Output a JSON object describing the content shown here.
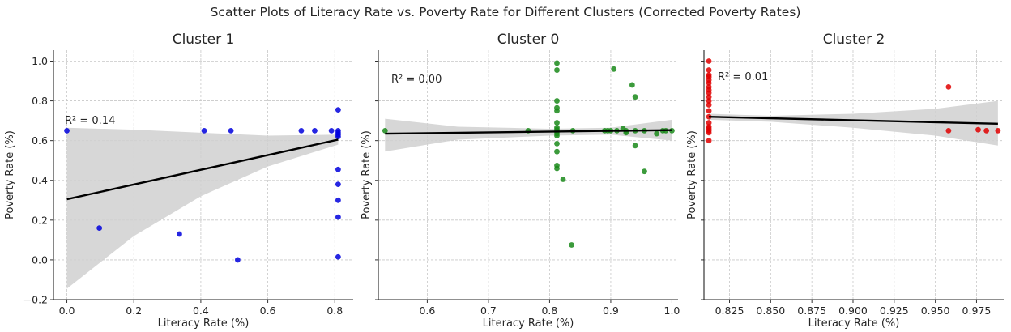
{
  "title": "Scatter Plots of Literacy Rate vs. Poverty Rate for Different Clusters (Corrected Poverty Rates)",
  "chart_data": [
    {
      "type": "scatter",
      "title": "Cluster 1",
      "xlabel": "Literacy Rate (%)",
      "ylabel": "Poverty Rate (%)",
      "xlim": [
        -0.04,
        0.855
      ],
      "ylim": [
        -0.2,
        1.055
      ],
      "xticks": [
        "0.0",
        "0.2",
        "0.4",
        "0.6",
        "0.8"
      ],
      "yticks": [
        "−0.2",
        "0.0",
        "0.2",
        "0.4",
        "0.6",
        "0.8",
        "1.0"
      ],
      "grid": true,
      "color": "#0000dd",
      "annotation": "R² = 0.14",
      "points": [
        {
          "x": 0.0,
          "y": 0.65
        },
        {
          "x": 0.097,
          "y": 0.16
        },
        {
          "x": 0.336,
          "y": 0.13
        },
        {
          "x": 0.41,
          "y": 0.65
        },
        {
          "x": 0.49,
          "y": 0.65
        },
        {
          "x": 0.51,
          "y": 0.0
        },
        {
          "x": 0.7,
          "y": 0.65
        },
        {
          "x": 0.74,
          "y": 0.65
        },
        {
          "x": 0.79,
          "y": 0.65
        },
        {
          "x": 0.81,
          "y": 0.755
        },
        {
          "x": 0.81,
          "y": 0.65
        },
        {
          "x": 0.81,
          "y": 0.64
        },
        {
          "x": 0.81,
          "y": 0.63
        },
        {
          "x": 0.81,
          "y": 0.62
        },
        {
          "x": 0.81,
          "y": 0.455
        },
        {
          "x": 0.81,
          "y": 0.38
        },
        {
          "x": 0.81,
          "y": 0.3
        },
        {
          "x": 0.81,
          "y": 0.215
        },
        {
          "x": 0.81,
          "y": 0.015
        }
      ],
      "regression": {
        "x": [
          0.0,
          0.81
        ],
        "y": [
          0.305,
          0.605
        ]
      },
      "band_upper": {
        "x": [
          0.0,
          0.2,
          0.4,
          0.6,
          0.81
        ],
        "y": [
          0.665,
          0.655,
          0.64,
          0.625,
          0.63
        ]
      },
      "band_lower": {
        "x": [
          0.0,
          0.2,
          0.4,
          0.6,
          0.81
        ],
        "y": [
          -0.145,
          0.12,
          0.32,
          0.47,
          0.58
        ]
      }
    },
    {
      "type": "scatter",
      "title": "Cluster 0",
      "xlabel": "Literacy Rate (%)",
      "ylabel": "Poverty Rate (%)",
      "xlim": [
        0.52,
        1.01
      ],
      "ylim": [
        -0.2,
        1.055
      ],
      "xticks": [
        "0.6",
        "0.7",
        "0.8",
        "0.9",
        "1.0"
      ],
      "yticks": [],
      "grid": true,
      "color": "#1a8a1a",
      "annotation": "R² = 0.00",
      "points": [
        {
          "x": 0.531,
          "y": 0.65
        },
        {
          "x": 0.765,
          "y": 0.65
        },
        {
          "x": 0.812,
          "y": 0.99
        },
        {
          "x": 0.812,
          "y": 0.955
        },
        {
          "x": 0.812,
          "y": 0.8
        },
        {
          "x": 0.812,
          "y": 0.765
        },
        {
          "x": 0.812,
          "y": 0.75
        },
        {
          "x": 0.812,
          "y": 0.69
        },
        {
          "x": 0.812,
          "y": 0.665
        },
        {
          "x": 0.812,
          "y": 0.655
        },
        {
          "x": 0.812,
          "y": 0.645
        },
        {
          "x": 0.812,
          "y": 0.635
        },
        {
          "x": 0.812,
          "y": 0.625
        },
        {
          "x": 0.812,
          "y": 0.585
        },
        {
          "x": 0.812,
          "y": 0.545
        },
        {
          "x": 0.812,
          "y": 0.475
        },
        {
          "x": 0.812,
          "y": 0.46
        },
        {
          "x": 0.822,
          "y": 0.405
        },
        {
          "x": 0.836,
          "y": 0.075
        },
        {
          "x": 0.838,
          "y": 0.65
        },
        {
          "x": 0.89,
          "y": 0.65
        },
        {
          "x": 0.895,
          "y": 0.65
        },
        {
          "x": 0.9,
          "y": 0.65
        },
        {
          "x": 0.905,
          "y": 0.96
        },
        {
          "x": 0.91,
          "y": 0.65
        },
        {
          "x": 0.92,
          "y": 0.66
        },
        {
          "x": 0.925,
          "y": 0.64
        },
        {
          "x": 0.925,
          "y": 0.65
        },
        {
          "x": 0.935,
          "y": 0.88
        },
        {
          "x": 0.94,
          "y": 0.82
        },
        {
          "x": 0.94,
          "y": 0.575
        },
        {
          "x": 0.94,
          "y": 0.65
        },
        {
          "x": 0.955,
          "y": 0.65
        },
        {
          "x": 0.955,
          "y": 0.445
        },
        {
          "x": 0.975,
          "y": 0.635
        },
        {
          "x": 0.985,
          "y": 0.65
        },
        {
          "x": 0.99,
          "y": 0.65
        },
        {
          "x": 1.0,
          "y": 0.65
        }
      ],
      "regression": {
        "x": [
          0.531,
          1.0
        ],
        "y": [
          0.635,
          0.653
        ]
      },
      "band_upper": {
        "x": [
          0.531,
          0.65,
          0.8,
          0.9,
          1.0
        ],
        "y": [
          0.71,
          0.67,
          0.66,
          0.665,
          0.705
        ]
      },
      "band_lower": {
        "x": [
          0.531,
          0.65,
          0.8,
          0.9,
          1.0
        ],
        "y": [
          0.545,
          0.605,
          0.625,
          0.63,
          0.6
        ]
      }
    },
    {
      "type": "scatter",
      "title": "Cluster 2",
      "xlabel": "Literacy Rate (%)",
      "ylabel": "Poverty Rate (%)",
      "xlim": [
        0.8095,
        0.9915
      ],
      "ylim": [
        -0.2,
        1.055
      ],
      "xticks": [
        "0.825",
        "0.850",
        "0.875",
        "0.900",
        "0.925",
        "0.950",
        "0.975"
      ],
      "yticks": [],
      "grid": true,
      "color": "#e00000",
      "annotation": "R² = 0.01",
      "points": [
        {
          "x": 0.8125,
          "y": 1.0
        },
        {
          "x": 0.8125,
          "y": 0.955
        },
        {
          "x": 0.8125,
          "y": 0.93
        },
        {
          "x": 0.8125,
          "y": 0.92
        },
        {
          "x": 0.8125,
          "y": 0.905
        },
        {
          "x": 0.8125,
          "y": 0.89
        },
        {
          "x": 0.8125,
          "y": 0.87
        },
        {
          "x": 0.8125,
          "y": 0.855
        },
        {
          "x": 0.8125,
          "y": 0.84
        },
        {
          "x": 0.8125,
          "y": 0.82
        },
        {
          "x": 0.8125,
          "y": 0.8
        },
        {
          "x": 0.8125,
          "y": 0.78
        },
        {
          "x": 0.8125,
          "y": 0.75
        },
        {
          "x": 0.8125,
          "y": 0.72
        },
        {
          "x": 0.8125,
          "y": 0.69
        },
        {
          "x": 0.8125,
          "y": 0.67
        },
        {
          "x": 0.8125,
          "y": 0.66
        },
        {
          "x": 0.8125,
          "y": 0.65
        },
        {
          "x": 0.8125,
          "y": 0.64
        },
        {
          "x": 0.8125,
          "y": 0.6
        },
        {
          "x": 0.958,
          "y": 0.87
        },
        {
          "x": 0.958,
          "y": 0.65
        },
        {
          "x": 0.976,
          "y": 0.655
        },
        {
          "x": 0.981,
          "y": 0.65
        },
        {
          "x": 0.988,
          "y": 0.65
        }
      ],
      "regression": {
        "x": [
          0.8125,
          0.988
        ],
        "y": [
          0.72,
          0.685
        ]
      },
      "band_upper": {
        "x": [
          0.8125,
          0.85,
          0.9,
          0.95,
          0.988
        ],
        "y": [
          0.735,
          0.725,
          0.735,
          0.76,
          0.8
        ]
      },
      "band_lower": {
        "x": [
          0.8125,
          0.85,
          0.9,
          0.95,
          0.988
        ],
        "y": [
          0.705,
          0.695,
          0.665,
          0.625,
          0.575
        ]
      }
    }
  ]
}
